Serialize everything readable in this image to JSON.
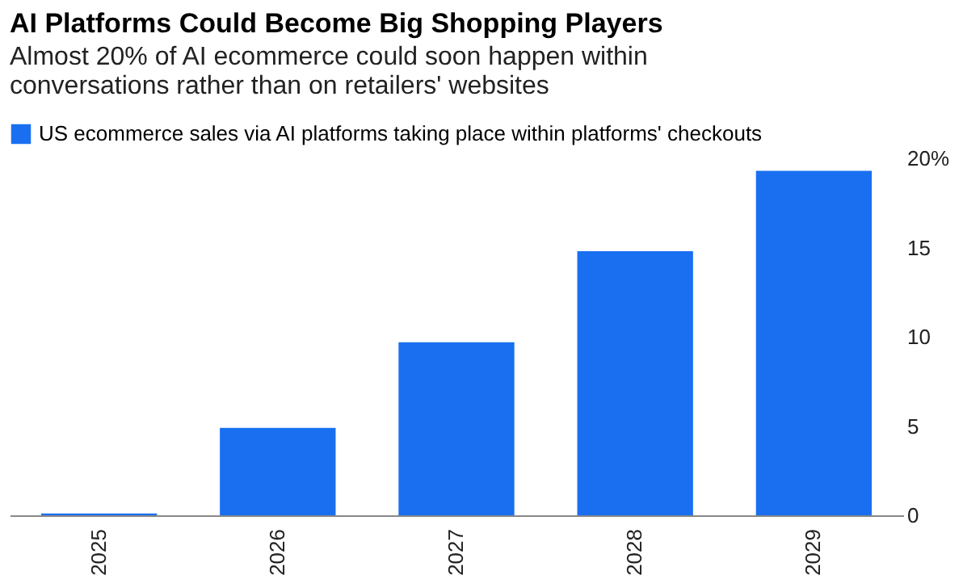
{
  "chart_data": {
    "type": "bar",
    "title": "AI Platforms Could Become Big Shopping Players",
    "subtitle": "Almost 20% of AI ecommerce could soon happen within conversations rather than on retailers' websites",
    "categories": [
      "2025",
      "2026",
      "2027",
      "2028",
      "2029"
    ],
    "series": [
      {
        "name": "US ecommerce sales via AI platforms taking place within platforms' checkouts",
        "color": "#1a6ff0",
        "values": [
          0.1,
          4.9,
          9.7,
          14.8,
          19.3
        ]
      }
    ],
    "ylim": [
      0,
      20
    ],
    "yticks": [
      0,
      5,
      10,
      15,
      {
        "value": 20,
        "label": "20%"
      }
    ],
    "grid": false,
    "legend": "top left"
  }
}
